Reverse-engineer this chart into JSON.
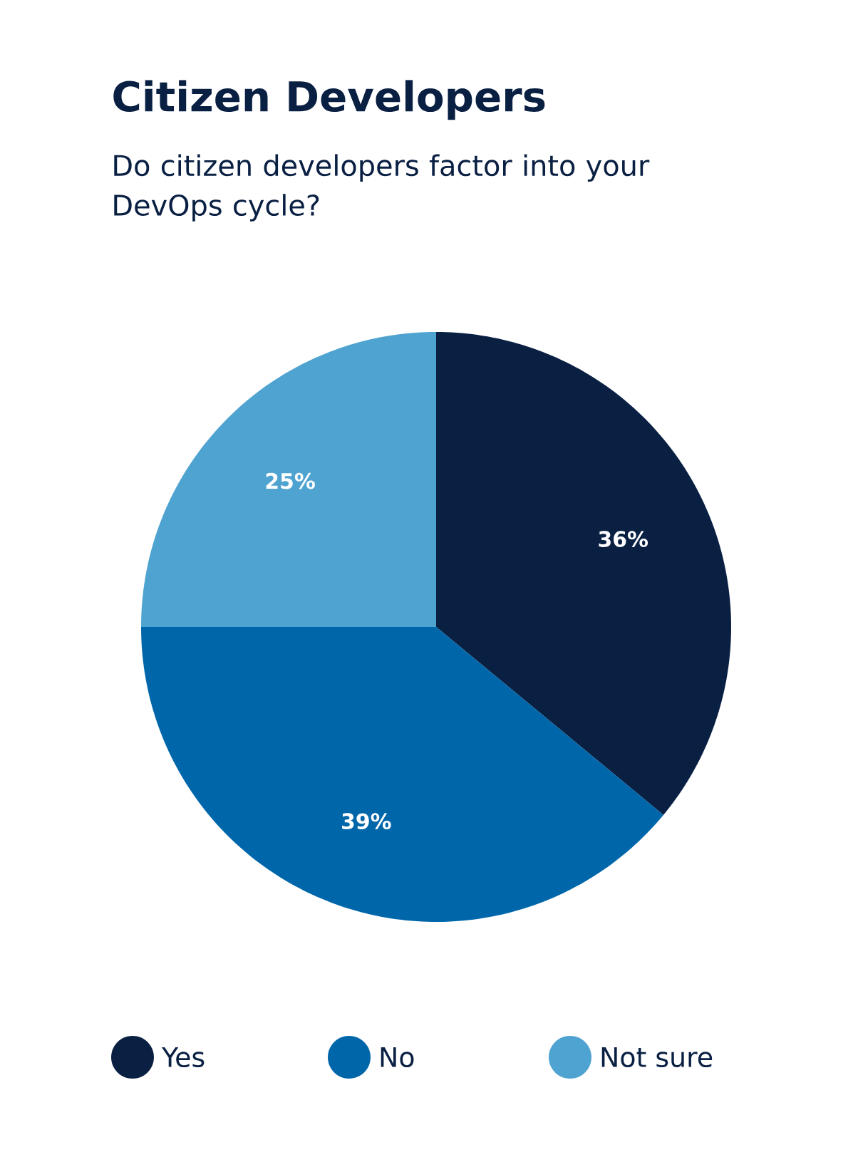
{
  "chart_data": {
    "type": "pie",
    "title": "Citizen Developers",
    "subtitle": "Do citizen developers factor into your DevOps cycle?",
    "categories": [
      "Yes",
      "No",
      "Not sure"
    ],
    "values": [
      36,
      39,
      25
    ],
    "colors": [
      "#0a2043",
      "#0066aa",
      "#4fa3d1"
    ],
    "value_labels": [
      "36%",
      "39%",
      "25%"
    ],
    "legend": "bottom"
  }
}
